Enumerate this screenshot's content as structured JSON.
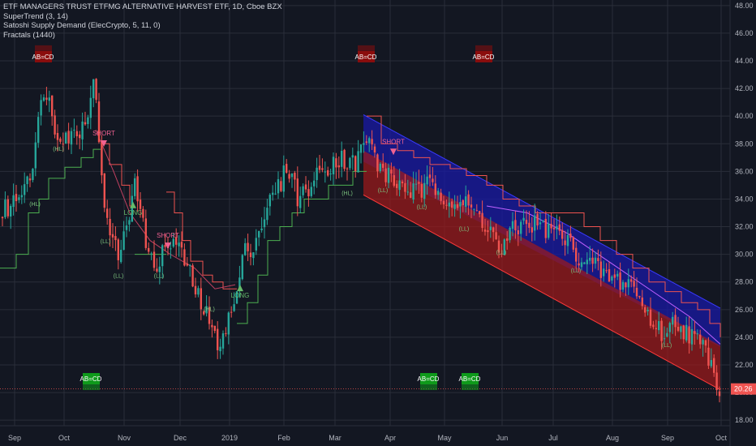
{
  "legend": {
    "title": "ETF MANAGERS TRUST ETFMG ALTERNATIVE HARVEST ETF, 1D, Cboe BZX",
    "lines": [
      "SuperTrend (3, 14)",
      "Satoshi Supply Demand (ElecCrypto, 5, 11, 0)",
      "Fractals (1440)"
    ]
  },
  "chart_data": {
    "type": "candlestick",
    "y_axis": {
      "min": 17.6,
      "max": 48.4,
      "side": "right",
      "ticks": [
        "48.00",
        "46.00",
        "44.00",
        "42.00",
        "40.00",
        "38.00",
        "36.00",
        "34.00",
        "32.00",
        "30.00",
        "28.00",
        "26.00",
        "24.00",
        "22.00",
        "20.00",
        "18.00"
      ]
    },
    "x_axis": {
      "ticks": [
        "Sep",
        "Oct",
        "Nov",
        "Dec",
        "2019",
        "Feb",
        "Mar",
        "Apr",
        "May",
        "Jun",
        "Jul",
        "Aug",
        "Sep",
        "Oct"
      ]
    },
    "last_price": {
      "label": "20.26",
      "value": 20.26
    },
    "colors": {
      "up": "#26a69a",
      "down": "#ef5350",
      "background": "#131722",
      "supertrend_up": "#4caf50",
      "supertrend_down": "#ef5350",
      "supply_zone": "#1a1aa6",
      "demand_zone": "#a31a1a"
    },
    "badges": [
      {
        "label": "AB=CD",
        "type": "bearish",
        "x": "Sep",
        "y": 44.3
      },
      {
        "label": "AB=CD",
        "type": "bearish",
        "x": "Mar",
        "y": 44.3
      },
      {
        "label": "AB=CD",
        "type": "bearish",
        "x": "May",
        "y": 44.3
      },
      {
        "label": "AB=CD",
        "type": "bullish",
        "x": "Oct",
        "y": 21.0
      },
      {
        "label": "AB=CD",
        "type": "bullish",
        "x": "Apr",
        "y": 21.0
      },
      {
        "label": "AB=CD",
        "type": "bullish",
        "x": "May",
        "y": 21.0
      }
    ],
    "signals": [
      {
        "label": "SHORT",
        "type": "short",
        "x": "Oct",
        "y": 38.6
      },
      {
        "label": "LONG",
        "type": "long",
        "x": "Nov",
        "y": 33.1
      },
      {
        "label": "SHORT",
        "type": "short",
        "x": "Nov",
        "y": 31.2
      },
      {
        "label": "LONG",
        "type": "long",
        "x": "Dec",
        "y": 27.1
      },
      {
        "label": "SHORT",
        "type": "short",
        "x": "Mar",
        "y": 38.0
      }
    ],
    "fractal_labels": [
      "(HL)",
      "(HL)",
      "(LL)",
      "(LL)",
      "(LL)",
      "(HL)",
      "(HL)",
      "(LL)",
      "(LL)",
      "(LL)",
      "(LL)",
      "(LL)",
      "(LL)"
    ]
  }
}
